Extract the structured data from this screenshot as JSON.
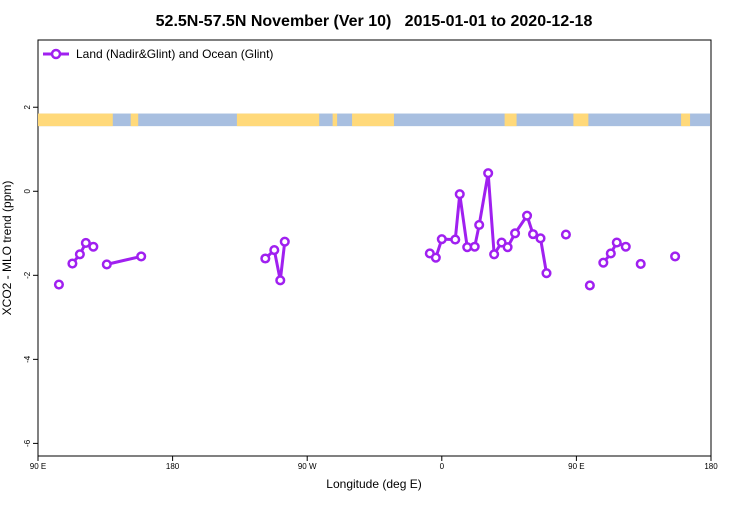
{
  "chart_data": {
    "type": "line",
    "title": "52.5N-57.5N November (Ver 10)   2015-01-01 to 2020-12-18",
    "xlabel": "Longitude (deg E)",
    "ylabel": "XCO2 - MLO trend (ppm)",
    "xlim": [
      90,
      540
    ],
    "ylim": [
      -6.3,
      3.6
    ],
    "x_ticks": [
      {
        "value": 90,
        "label": "90 E"
      },
      {
        "value": 180,
        "label": "180"
      },
      {
        "value": 270,
        "label": "90 W"
      },
      {
        "value": 360,
        "label": "0"
      },
      {
        "value": 450,
        "label": "90 E"
      },
      {
        "value": 540,
        "label": "180"
      }
    ],
    "y_ticks": [
      {
        "value": 2,
        "label": "2"
      },
      {
        "value": 0,
        "label": "0"
      },
      {
        "value": -2,
        "label": "-2"
      },
      {
        "value": -4,
        "label": "-4"
      },
      {
        "value": -6,
        "label": "-6"
      }
    ],
    "legend_position": "top-left",
    "colors": {
      "series": "#a020f0",
      "land": "#ffd97a",
      "ocean": "#a8bfe0"
    },
    "land_ocean_strip": {
      "y_range": [
        1.55,
        1.85
      ],
      "land_ranges": [
        [
          90,
          140
        ],
        [
          152,
          157
        ],
        [
          223,
          278
        ],
        [
          287,
          290
        ],
        [
          300,
          328
        ],
        [
          402,
          410
        ],
        [
          448,
          458
        ],
        [
          520,
          526
        ]
      ]
    },
    "series": [
      {
        "name": "Land (Nadir&Glint) and Ocean (Glint)",
        "segments": [
          [
            [
              104,
              -2.22
            ]
          ],
          [
            [
              113,
              -1.72
            ],
            [
              118,
              -1.5
            ],
            [
              122,
              -1.23
            ],
            [
              127,
              -1.32
            ]
          ],
          [
            [
              136,
              -1.74
            ],
            [
              159,
              -1.55
            ]
          ],
          [
            [
              242,
              -1.6
            ],
            [
              248,
              -1.4
            ],
            [
              252,
              -2.12
            ],
            [
              255,
              -1.2
            ]
          ],
          [
            [
              352,
              -1.48
            ],
            [
              356,
              -1.58
            ],
            [
              360,
              -1.14
            ],
            [
              369,
              -1.15
            ],
            [
              372,
              -0.07
            ],
            [
              377,
              -1.33
            ],
            [
              382,
              -1.32
            ],
            [
              385,
              -0.8
            ],
            [
              391,
              0.43
            ],
            [
              395,
              -1.5
            ],
            [
              400,
              -1.22
            ],
            [
              404,
              -1.33
            ],
            [
              409,
              -1.0
            ],
            [
              417,
              -0.58
            ],
            [
              421,
              -1.02
            ],
            [
              426,
              -1.12
            ],
            [
              430,
              -1.95
            ]
          ],
          [
            [
              443,
              -1.03
            ]
          ],
          [
            [
              459,
              -2.24
            ]
          ],
          [
            [
              468,
              -1.7
            ],
            [
              473,
              -1.48
            ],
            [
              477,
              -1.22
            ],
            [
              483,
              -1.32
            ]
          ],
          [
            [
              493,
              -1.73
            ]
          ],
          [
            [
              516,
              -1.55
            ]
          ]
        ]
      }
    ]
  }
}
